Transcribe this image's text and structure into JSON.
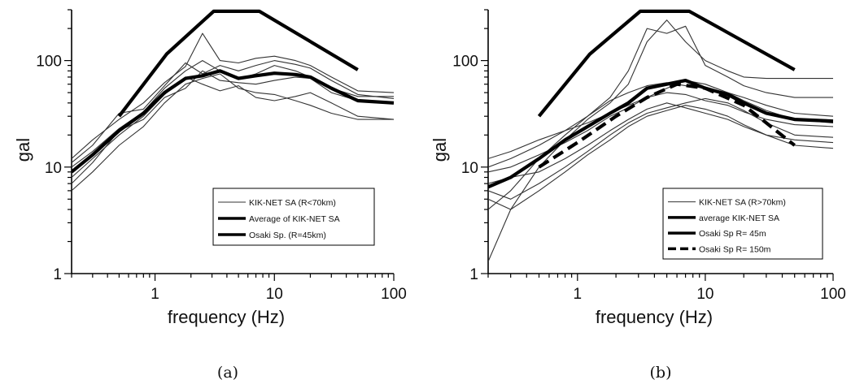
{
  "chart_data": [
    {
      "type": "line",
      "caption": "(a)",
      "xlabel": "frequency (Hz)",
      "ylabel": "gal",
      "xscale": "log",
      "yscale": "log",
      "xlim": [
        0.2,
        100
      ],
      "ylim": [
        1,
        300
      ],
      "xticks": [
        1,
        10,
        100
      ],
      "yticks": [
        1,
        10,
        100
      ],
      "legend_position": "bottom-right",
      "series": [
        {
          "name": "KIK-NET SA (R<70km)",
          "role": "individual",
          "color": "#333333",
          "x": [
            0.2,
            0.3,
            0.5,
            0.8,
            1.2,
            1.8,
            2.5,
            3.5,
            5,
            7,
            10,
            15,
            20,
            30,
            50,
            100
          ],
          "y": [
            10,
            14,
            23,
            33,
            55,
            80,
            100,
            80,
            68,
            75,
            90,
            80,
            70,
            55,
            46,
            46
          ]
        },
        {
          "name": "",
          "role": "individual",
          "color": "#333333",
          "x": [
            0.2,
            0.3,
            0.5,
            0.8,
            1.2,
            1.8,
            2.5,
            3.5,
            5,
            7,
            10,
            15,
            20,
            30,
            50,
            100
          ],
          "y": [
            12,
            18,
            28,
            40,
            62,
            88,
            180,
            100,
            95,
            105,
            110,
            100,
            90,
            70,
            52,
            50
          ]
        },
        {
          "name": "",
          "role": "individual",
          "color": "#333333",
          "x": [
            0.2,
            0.3,
            0.5,
            0.8,
            1.2,
            1.8,
            2.5,
            3.5,
            5,
            7,
            10,
            15,
            20,
            30,
            50,
            100
          ],
          "y": [
            6,
            9,
            16,
            24,
            40,
            60,
            68,
            75,
            55,
            50,
            48,
            42,
            38,
            32,
            28,
            28
          ]
        },
        {
          "name": "",
          "role": "individual",
          "color": "#333333",
          "x": [
            0.2,
            0.3,
            0.5,
            0.8,
            1.2,
            1.8,
            2.5,
            3.5,
            5,
            7,
            10,
            15,
            20,
            30,
            50,
            100
          ],
          "y": [
            8,
            12,
            20,
            30,
            48,
            70,
            60,
            52,
            58,
            45,
            42,
            46,
            50,
            40,
            30,
            28
          ]
        },
        {
          "name": "",
          "role": "individual",
          "color": "#333333",
          "x": [
            0.2,
            0.3,
            0.5,
            0.8,
            1.2,
            1.8,
            2.5,
            3.5,
            5,
            7,
            10,
            15,
            20,
            30,
            50,
            100
          ],
          "y": [
            11,
            16,
            32,
            35,
            58,
            95,
            75,
            90,
            80,
            90,
            100,
            92,
            85,
            65,
            48,
            44
          ]
        },
        {
          "name": "",
          "role": "individual",
          "color": "#333333",
          "x": [
            0.2,
            0.3,
            0.5,
            0.8,
            1.2,
            1.8,
            2.5,
            3.5,
            5,
            7,
            10,
            15,
            20,
            30,
            50,
            100
          ],
          "y": [
            7,
            11,
            22,
            28,
            45,
            55,
            80,
            65,
            62,
            60,
            65,
            70,
            68,
            50,
            42,
            40
          ]
        },
        {
          "name": "Average of KIK-NET SA",
          "role": "average",
          "color": "#000000",
          "x": [
            0.2,
            0.3,
            0.5,
            0.8,
            1.2,
            1.8,
            2.5,
            3.5,
            5,
            7,
            10,
            15,
            20,
            30,
            50,
            100
          ],
          "y": [
            9,
            13,
            22,
            32,
            50,
            68,
            72,
            80,
            68,
            72,
            76,
            74,
            70,
            55,
            42,
            40
          ]
        },
        {
          "name": "Osaki Sp. (R=45km)",
          "role": "source-spectrum",
          "color": "#000000",
          "x": [
            0.5,
            1.25,
            3.1,
            7.5,
            50
          ],
          "y": [
            30,
            115,
            290,
            290,
            82
          ]
        }
      ]
    },
    {
      "type": "line",
      "caption": "(b)",
      "xlabel": "frequency (Hz)",
      "ylabel": "gal",
      "xscale": "log",
      "yscale": "log",
      "xlim": [
        0.2,
        100
      ],
      "ylim": [
        1,
        300
      ],
      "xticks": [
        1,
        10,
        100
      ],
      "yticks": [
        1,
        10,
        100
      ],
      "legend_position": "bottom-right",
      "series": [
        {
          "name": "KIK-NET SA (R>70km)",
          "role": "individual",
          "color": "#333333",
          "x": [
            0.2,
            0.3,
            0.5,
            0.8,
            1.2,
            1.8,
            2.5,
            3.5,
            5,
            7,
            10,
            15,
            20,
            30,
            50,
            100
          ],
          "y": [
            1.3,
            4,
            10,
            18,
            28,
            40,
            60,
            150,
            240,
            150,
            100,
            80,
            70,
            68,
            68,
            68
          ]
        },
        {
          "name": "",
          "role": "individual",
          "color": "#333333",
          "x": [
            0.2,
            0.3,
            0.5,
            0.8,
            1.2,
            1.8,
            2.5,
            3.5,
            5,
            7,
            10,
            15,
            20,
            30,
            50,
            100
          ],
          "y": [
            4,
            6,
            12,
            20,
            30,
            45,
            80,
            200,
            180,
            210,
            90,
            70,
            58,
            50,
            45,
            45
          ]
        },
        {
          "name": "",
          "role": "individual",
          "color": "#333333",
          "x": [
            0.2,
            0.3,
            0.5,
            0.8,
            1.2,
            1.8,
            2.5,
            3.5,
            5,
            7,
            10,
            15,
            20,
            30,
            50,
            100
          ],
          "y": [
            12,
            14,
            18,
            22,
            26,
            32,
            38,
            45,
            50,
            48,
            42,
            38,
            33,
            28,
            25,
            24
          ]
        },
        {
          "name": "",
          "role": "individual",
          "color": "#333333",
          "x": [
            0.2,
            0.3,
            0.5,
            0.8,
            1.2,
            1.8,
            2.5,
            3.5,
            5,
            7,
            10,
            15,
            20,
            30,
            50,
            100
          ],
          "y": [
            7,
            8,
            9,
            12,
            16,
            22,
            28,
            35,
            40,
            36,
            32,
            28,
            24,
            20,
            18,
            17
          ]
        },
        {
          "name": "",
          "role": "individual",
          "color": "#333333",
          "x": [
            0.2,
            0.3,
            0.5,
            0.8,
            1.2,
            1.8,
            2.5,
            3.5,
            5,
            7,
            10,
            15,
            20,
            30,
            50,
            100
          ],
          "y": [
            5,
            4,
            6,
            9,
            13,
            18,
            24,
            30,
            34,
            38,
            35,
            30,
            25,
            20,
            16,
            15
          ]
        },
        {
          "name": "",
          "role": "individual",
          "color": "#333333",
          "x": [
            0.2,
            0.3,
            0.5,
            0.8,
            1.2,
            1.8,
            2.5,
            3.5,
            5,
            7,
            10,
            15,
            20,
            30,
            50,
            100
          ],
          "y": [
            10,
            12,
            16,
            22,
            30,
            42,
            50,
            58,
            62,
            58,
            55,
            50,
            45,
            38,
            32,
            30
          ]
        },
        {
          "name": "",
          "role": "individual",
          "color": "#333333",
          "x": [
            0.2,
            0.3,
            0.5,
            0.8,
            1.2,
            1.8,
            2.5,
            3.5,
            5,
            7,
            10,
            15,
            20,
            30,
            50,
            100
          ],
          "y": [
            6,
            5,
            7,
            10,
            14,
            20,
            26,
            32,
            36,
            40,
            44,
            40,
            34,
            26,
            20,
            19
          ]
        },
        {
          "name": "",
          "role": "individual",
          "color": "#333333",
          "x": [
            0.2,
            0.3,
            0.5,
            0.8,
            1.2,
            1.8,
            2.5,
            3.5,
            5,
            7,
            10,
            15,
            20,
            30,
            50,
            100
          ],
          "y": [
            9,
            10,
            13,
            17,
            22,
            30,
            36,
            45,
            55,
            65,
            60,
            50,
            42,
            34,
            28,
            26
          ]
        },
        {
          "name": "average KIK-NET SA",
          "role": "average",
          "color": "#000000",
          "x": [
            0.2,
            0.3,
            0.5,
            0.8,
            1.2,
            1.8,
            2.5,
            3.5,
            5,
            7,
            10,
            15,
            20,
            30,
            50,
            100
          ],
          "y": [
            6.5,
            8,
            12,
            18,
            24,
            32,
            40,
            55,
            60,
            65,
            55,
            48,
            40,
            32,
            28,
            27
          ]
        },
        {
          "name": "Osaki Sp  R= 45m",
          "role": "source-spectrum",
          "color": "#000000",
          "x": [
            0.5,
            1.25,
            3.1,
            7.5,
            50
          ],
          "y": [
            30,
            115,
            290,
            290,
            82
          ]
        },
        {
          "name": "Osaki Sp  R= 150m",
          "role": "source-spectrum-dashed",
          "color": "#000000",
          "x": [
            0.5,
            1.0,
            2.0,
            3.5,
            6,
            10,
            20,
            30,
            50
          ],
          "y": [
            10,
            17,
            30,
            45,
            60,
            55,
            38,
            26,
            16
          ]
        }
      ]
    }
  ]
}
